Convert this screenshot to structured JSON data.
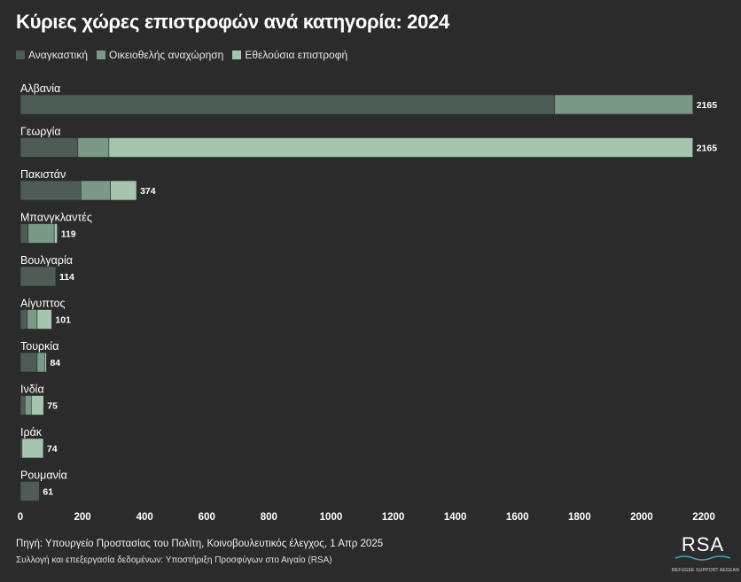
{
  "title": "Κύριες χώρες επιστροφών ανά κατηγορία: 2024",
  "colors": {
    "background": "#2b2b2b",
    "forced": "#4d5c54",
    "voluntary_departure": "#7a9a86",
    "voluntary_return": "#a6c5ae"
  },
  "chart_data": {
    "type": "bar",
    "orientation": "horizontal",
    "stacked": true,
    "title": "Κύριες χώρες επιστροφών ανά κατηγορία: 2024",
    "categories": [
      "Αλβανία",
      "Γεωργία",
      "Πακιστάν",
      "Μπανγκλαντές",
      "Βουλγαρία",
      "Αίγυπτος",
      "Τουρκία",
      "Ινδία",
      "Ιράκ",
      "Ρουμανία"
    ],
    "series": [
      {
        "name": "Αναγκαστική",
        "color": "#4d5c54",
        "values": [
          1720,
          185,
          195,
          25,
          114,
          22,
          54,
          15,
          5,
          61
        ]
      },
      {
        "name": "Οικειοθελής αναχώρηση",
        "color": "#7a9a86",
        "values": [
          445,
          100,
          95,
          84,
          0,
          32,
          24,
          20,
          0,
          0
        ]
      },
      {
        "name": "Εθελούσια επιστροφή",
        "color": "#a6c5ae",
        "values": [
          0,
          1880,
          84,
          10,
          0,
          47,
          6,
          40,
          69,
          0
        ]
      }
    ],
    "totals": [
      "2165",
      "2165",
      "374",
      "119",
      "114",
      "101",
      "84",
      "75",
      "74",
      "61"
    ],
    "xlim": [
      0,
      2200
    ],
    "xticks": [
      "0",
      "200",
      "400",
      "600",
      "800",
      "1000",
      "1200",
      "1400",
      "1600",
      "1800",
      "2000",
      "2200"
    ],
    "legend_position": "top-left",
    "grid": false
  },
  "footer": {
    "source": "Πηγή: Υπουργείο Προστασίας του Πολίτη, Κοινοβουλευτικός έλεγχος, 1 Απρ 2025",
    "credit": "Συλλογή και επεξεργασία δεδομένων: Υποστήριξη Προσφύγων στο Αιγαίο (RSA)"
  },
  "logo": {
    "text": "RSA",
    "subtitle": "REFUGEE SUPPORT AEGEAN"
  }
}
